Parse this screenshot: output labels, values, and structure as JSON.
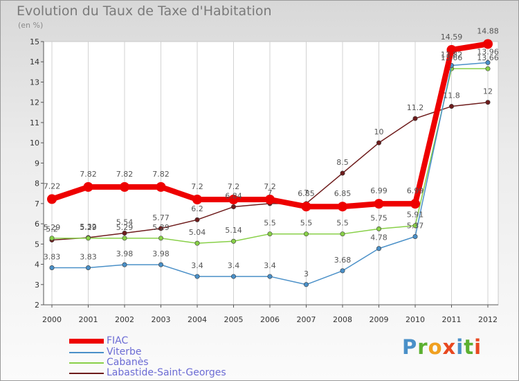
{
  "title": "Evolution du Taux de Taxe d'Habitation",
  "subtitle": "(en %)",
  "logo_text": "Proxiti",
  "chart_data": {
    "type": "line",
    "title": "Evolution du Taux de Taxe d'Habitation",
    "ylabel": "(en %)",
    "xlabel": "",
    "x": [
      "2000",
      "2001",
      "2002",
      "2003",
      "2004",
      "2005",
      "2006",
      "2007",
      "2008",
      "2009",
      "2010",
      "2011",
      "2012"
    ],
    "ylim": [
      2,
      15
    ],
    "yticks": [
      "2",
      "3",
      "4",
      "5",
      "6",
      "7",
      "8",
      "9",
      "10",
      "11",
      "12",
      "13",
      "14",
      "15"
    ],
    "grid": "vertical",
    "legend_position": "bottom-left",
    "series": [
      {
        "name": "FIAC",
        "color": "#ee0000",
        "values": [
          7.22,
          7.82,
          7.82,
          7.82,
          7.2,
          7.2,
          7.2,
          6.85,
          6.85,
          6.99,
          6.99,
          14.59,
          14.88
        ],
        "labels": [
          "7.22",
          "7.82",
          "7.82",
          "7.82",
          "7.2",
          "7.2",
          "7.2",
          "6.85",
          "6.85",
          "6.99",
          "6.99",
          "14.59",
          "14.88"
        ]
      },
      {
        "name": "Viterbe",
        "color": "#4a90c8",
        "values": [
          3.83,
          3.83,
          3.98,
          3.98,
          3.4,
          3.4,
          3.4,
          3,
          3.68,
          4.78,
          5.37,
          13.82,
          13.96
        ],
        "labels": [
          "3.83",
          "3.83",
          "3.98",
          "3.98",
          "3.4",
          "3.4",
          "3.4",
          "3",
          "3.68",
          "4.78",
          "5.37",
          "13.82",
          "13.96"
        ]
      },
      {
        "name": "Cabanès",
        "color": "#88d048",
        "values": [
          5.29,
          5.29,
          5.29,
          5.29,
          5.04,
          5.14,
          5.5,
          5.5,
          5.5,
          5.75,
          5.91,
          13.66,
          13.66
        ],
        "labels": [
          "5.29",
          "5.29",
          "5.29",
          "5.29",
          "5.04",
          "5.14",
          "5.5",
          "5.5",
          "5.5",
          "5.75",
          "5.91",
          "13.66",
          "13.66"
        ]
      },
      {
        "name": "Labastide-Saint-Georges",
        "color": "#6e1c1c",
        "values": [
          5.2,
          5.32,
          5.54,
          5.77,
          6.2,
          6.84,
          7,
          7,
          8.5,
          10,
          11.2,
          11.8,
          12
        ],
        "labels": [
          "5.2",
          "5.32",
          "5.54",
          "5.77",
          "6.2",
          "6.84",
          "7",
          "7",
          "8.5",
          "10",
          "11.2",
          "11.8",
          "12"
        ]
      }
    ]
  }
}
